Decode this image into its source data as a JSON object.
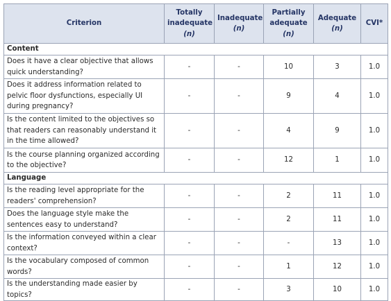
{
  "table": {
    "header": [
      {
        "label": "Criterion"
      },
      {
        "label": "Totally inadequate",
        "unit": "(n)"
      },
      {
        "label": "Inadequate",
        "unit": "(n)"
      },
      {
        "label": "Partially adequate",
        "unit": "(n)"
      },
      {
        "label": "Adequate",
        "unit": "(n)"
      },
      {
        "label": "CVI*"
      }
    ],
    "sections": [
      {
        "title": "Content",
        "rows": [
          [
            "Does it have a clear objective that allows quick understanding?",
            "-",
            "-",
            "10",
            "3",
            "1.0"
          ],
          [
            "Does it address information related to pelvic floor dysfunctions, especially UI during pregnancy?",
            "-",
            "-",
            "9",
            "4",
            "1.0"
          ],
          [
            "Is the content limited to the objectives so that readers can reasonably understand it in the time allowed?",
            "-",
            "-",
            "4",
            "9",
            "1.0"
          ],
          [
            "Is the course planning organized according to the objective?",
            "-",
            "-",
            "12",
            "1",
            "1.0"
          ]
        ]
      },
      {
        "title": "Language",
        "rows": [
          [
            "Is the reading level appropriate for the readers' comprehension?",
            "-",
            "-",
            "2",
            "11",
            "1.0"
          ],
          [
            "Does the language style make the sentences easy to understand?",
            "-",
            "-",
            "2",
            "11",
            "1.0"
          ],
          [
            "Is the information conveyed within a clear context?",
            "-",
            "-",
            "-",
            "13",
            "1.0"
          ],
          [
            "Is the vocabulary composed of common words?",
            "-",
            "-",
            "1",
            "12",
            "1.0"
          ],
          [
            "Is the understanding made easier by topics?",
            "-",
            "-",
            "3",
            "10",
            "1.0"
          ]
        ]
      }
    ]
  }
}
